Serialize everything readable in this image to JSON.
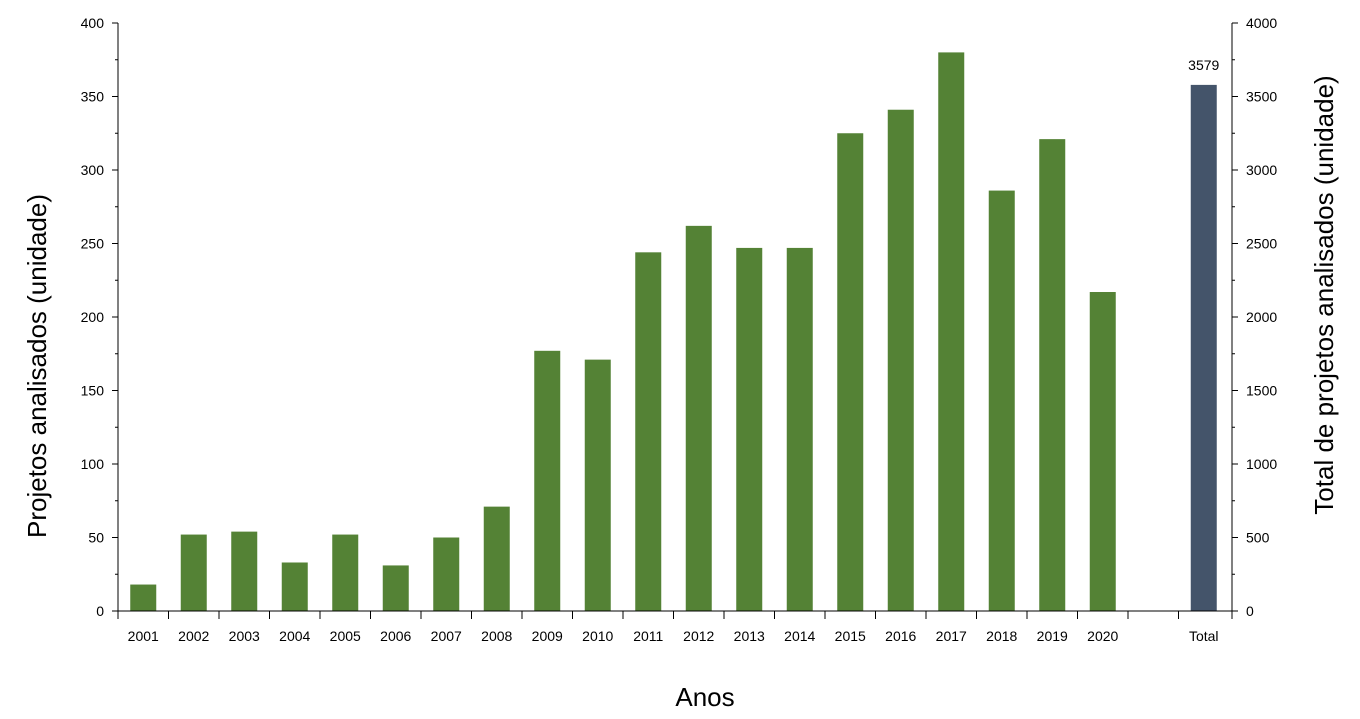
{
  "chart_data": {
    "type": "bar",
    "categories": [
      "2001",
      "2002",
      "2003",
      "2004",
      "2005",
      "2006",
      "2007",
      "2008",
      "2009",
      "2010",
      "2011",
      "2012",
      "2013",
      "2014",
      "2015",
      "2016",
      "2017",
      "2018",
      "2019",
      "2020",
      "",
      "Total"
    ],
    "series": [
      {
        "axis": "left",
        "color": "#548235",
        "values": [
          18,
          52,
          54,
          33,
          52,
          31,
          50,
          71,
          177,
          171,
          244,
          262,
          247,
          247,
          325,
          341,
          380,
          286,
          321,
          217,
          null,
          null
        ]
      },
      {
        "axis": "right",
        "color": "#44546A",
        "values": [
          null,
          null,
          null,
          null,
          null,
          null,
          null,
          null,
          null,
          null,
          null,
          null,
          null,
          null,
          null,
          null,
          null,
          null,
          null,
          null,
          null,
          3579
        ]
      }
    ],
    "data_labels": [
      {
        "category": "Total",
        "text": "3579"
      }
    ],
    "xlabel": "Anos",
    "ylabel": "Projetos analisados (unidade)",
    "y2label": "Total de projetos analisados (unidade)",
    "ylim": [
      0,
      400
    ],
    "y2lim": [
      0,
      4000
    ],
    "yticks": [
      "0",
      "50",
      "100",
      "150",
      "200",
      "250",
      "300",
      "350",
      "400"
    ],
    "y2ticks": [
      "0",
      "500",
      "1000",
      "1500",
      "2000",
      "2500",
      "3000",
      "3500",
      "4000"
    ],
    "grid": false,
    "legend": "none"
  }
}
